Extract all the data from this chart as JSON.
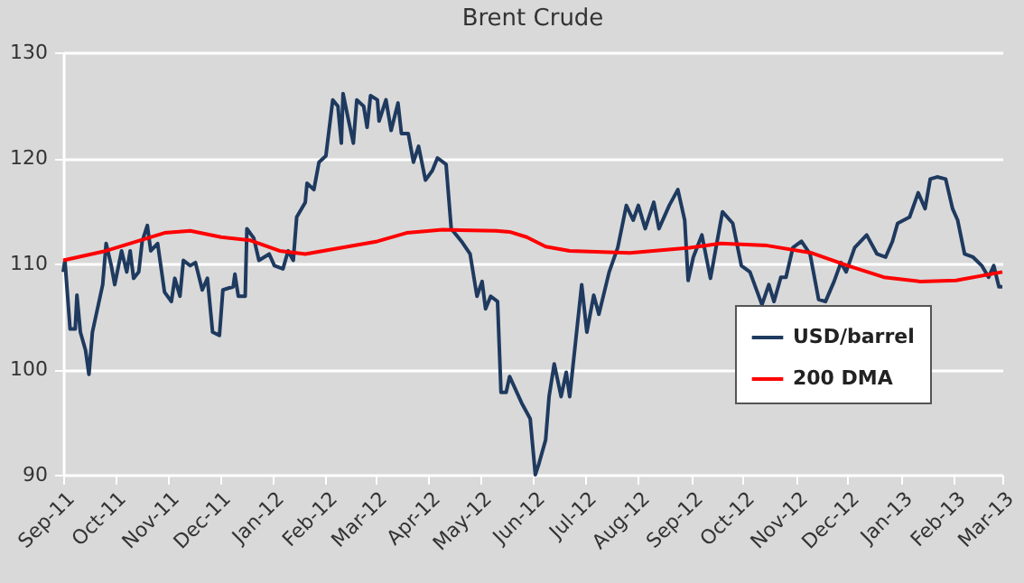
{
  "chart_data": {
    "type": "line",
    "title": "Brent Crude",
    "xlim": [
      "2011-09-01",
      "2013-03-01"
    ],
    "ylim": [
      90,
      130
    ],
    "yticks": [
      90,
      100,
      110,
      120,
      130
    ],
    "xticks": [
      {
        "value": "2011-09-01",
        "label": "Sep-11"
      },
      {
        "value": "2011-10-01",
        "label": "Oct-11"
      },
      {
        "value": "2011-11-01",
        "label": "Nov-11"
      },
      {
        "value": "2011-12-01",
        "label": "Dec-11"
      },
      {
        "value": "2012-01-01",
        "label": "Jan-12"
      },
      {
        "value": "2012-02-01",
        "label": "Feb-12"
      },
      {
        "value": "2012-03-01",
        "label": "Mar-12"
      },
      {
        "value": "2012-04-01",
        "label": "Apr-12"
      },
      {
        "value": "2012-05-01",
        "label": "May-12"
      },
      {
        "value": "2012-06-01",
        "label": "Jun-12"
      },
      {
        "value": "2012-07-01",
        "label": "Jul-12"
      },
      {
        "value": "2012-08-01",
        "label": "Aug-12"
      },
      {
        "value": "2012-09-01",
        "label": "Sep-12"
      },
      {
        "value": "2012-10-01",
        "label": "Oct-12"
      },
      {
        "value": "2012-11-01",
        "label": "Nov-12"
      },
      {
        "value": "2012-12-01",
        "label": "Dec-12"
      },
      {
        "value": "2013-01-01",
        "label": "Jan-13"
      },
      {
        "value": "2013-02-01",
        "label": "Feb-13"
      },
      {
        "value": "2013-03-01",
        "label": "Mar-13"
      }
    ],
    "grid": "y",
    "legend": "bottom right",
    "series": [
      {
        "name": "USD/barrel",
        "color": "#1f3a5f",
        "x": [
          "2011-09-01",
          "2011-09-02",
          "2011-09-05",
          "2011-09-08",
          "2011-09-09",
          "2011-09-11",
          "2011-09-14",
          "2011-09-16",
          "2011-09-18",
          "2011-09-24",
          "2011-09-26",
          "2011-09-29",
          "2011-10-01",
          "2011-10-05",
          "2011-10-08",
          "2011-10-10",
          "2011-10-12",
          "2011-10-15",
          "2011-10-17",
          "2011-10-20",
          "2011-10-22",
          "2011-10-26",
          "2011-10-30",
          "2011-11-03",
          "2011-11-05",
          "2011-11-08",
          "2011-11-10",
          "2011-11-14",
          "2011-11-17",
          "2011-11-21",
          "2011-11-24",
          "2011-11-27",
          "2011-12-01",
          "2011-12-03",
          "2011-12-09",
          "2011-12-10",
          "2011-12-12",
          "2011-12-16",
          "2011-12-17",
          "2011-12-21",
          "2011-12-24",
          "2011-12-30",
          "2012-01-02",
          "2012-01-07",
          "2012-01-10",
          "2012-01-13",
          "2012-01-15",
          "2012-01-20",
          "2012-01-21",
          "2012-01-25",
          "2012-01-28",
          "2012-02-01",
          "2012-02-05",
          "2012-02-08",
          "2012-02-10",
          "2012-02-11",
          "2012-02-14",
          "2012-02-17",
          "2012-02-19",
          "2012-02-23",
          "2012-02-25",
          "2012-02-27",
          "2012-03-02",
          "2012-03-03",
          "2012-03-07",
          "2012-03-10",
          "2012-03-14",
          "2012-03-16",
          "2012-03-20",
          "2012-03-23",
          "2012-03-26",
          "2012-03-30",
          "2012-04-03",
          "2012-04-06",
          "2012-04-11",
          "2012-04-14",
          "2012-04-20",
          "2012-04-25",
          "2012-04-29",
          "2012-05-02",
          "2012-05-04",
          "2012-05-07",
          "2012-05-11",
          "2012-05-13",
          "2012-05-16",
          "2012-05-18",
          "2012-05-25",
          "2012-05-30",
          "2012-06-02",
          "2012-06-04",
          "2012-06-08",
          "2012-06-10",
          "2012-06-13",
          "2012-06-17",
          "2012-06-20",
          "2012-06-22",
          "2012-06-29",
          "2012-07-02",
          "2012-07-06",
          "2012-07-09",
          "2012-07-15",
          "2012-07-20",
          "2012-07-25",
          "2012-07-29",
          "2012-08-01",
          "2012-08-05",
          "2012-08-10",
          "2012-08-13",
          "2012-08-19",
          "2012-08-24",
          "2012-08-28",
          "2012-08-30",
          "2012-09-02",
          "2012-09-07",
          "2012-09-12",
          "2012-09-19",
          "2012-09-25",
          "2012-09-30",
          "2012-10-05",
          "2012-10-12",
          "2012-10-16",
          "2012-10-19",
          "2012-10-23",
          "2012-10-26",
          "2012-10-30",
          "2012-11-04",
          "2012-11-09",
          "2012-11-14",
          "2012-11-18",
          "2012-11-23",
          "2012-11-27",
          "2012-11-30",
          "2012-12-05",
          "2012-12-12",
          "2012-12-18",
          "2012-12-23",
          "2012-12-27",
          "2012-12-30",
          "2013-01-06",
          "2013-01-11",
          "2013-01-15",
          "2013-01-18",
          "2013-01-22",
          "2013-01-27",
          "2013-01-31",
          "2013-02-03",
          "2013-02-07",
          "2013-02-12",
          "2013-02-17",
          "2013-02-21",
          "2013-02-24",
          "2013-02-27",
          "2013-03-01"
        ],
        "values": [
          109.2,
          110.3,
          103.8,
          103.8,
          107,
          103.5,
          101.8,
          99.5,
          103.5,
          108,
          111.9,
          109.8,
          108,
          111.2,
          109.2,
          111.2,
          108.6,
          109.2,
          112.1,
          113.6,
          111.2,
          111.9,
          107.3,
          106.4,
          108.6,
          106.9,
          110.3,
          109.8,
          110.1,
          107.5,
          108.6,
          103.5,
          103.2,
          107.5,
          107.8,
          109,
          106.9,
          106.9,
          113.3,
          112.4,
          110.3,
          110.9,
          109.8,
          109.5,
          111.2,
          110.3,
          114.4,
          115.8,
          117.6,
          117,
          119.6,
          120.2,
          125.5,
          124.9,
          121.4,
          126.1,
          123.7,
          121.4,
          125.5,
          124.9,
          122.9,
          125.9,
          125.5,
          123.5,
          125.5,
          122.6,
          125.2,
          122.3,
          122.3,
          119.6,
          121.1,
          117.9,
          118.8,
          120,
          119.4,
          113.3,
          112.1,
          110.9,
          106.9,
          108.3,
          105.7,
          106.9,
          106.4,
          97.8,
          97.8,
          99.3,
          96.8,
          95.3,
          90,
          91,
          93.3,
          97.4,
          100.5,
          97.4,
          99.7,
          97.4,
          108,
          103.5,
          107,
          105.2,
          109.2,
          111.5,
          115.5,
          114.1,
          115.5,
          113.3,
          115.8,
          113.3,
          115.5,
          117,
          114.1,
          108.4,
          110.6,
          112.7,
          108.6,
          114.9,
          113.8,
          109.8,
          109.2,
          106.1,
          108,
          106.4,
          108.7,
          108.7,
          111.5,
          112.1,
          110.9,
          106.6,
          106.4,
          108.3,
          110.1,
          109.2,
          111.5,
          112.7,
          110.9,
          110.6,
          112.1,
          113.8,
          114.4,
          116.7,
          115.2,
          118,
          118.2,
          118,
          115.2,
          114.1,
          110.9,
          110.6,
          109.8,
          108.7,
          109.8,
          107.8,
          107.8
        ]
      },
      {
        "name": "200 DMA",
        "color": "#ff0000",
        "x": [
          "2011-09-01",
          "2011-09-26",
          "2011-10-30",
          "2011-11-14",
          "2011-12-02",
          "2011-12-19",
          "2012-01-05",
          "2012-01-20",
          "2012-02-10",
          "2012-03-02",
          "2012-03-19",
          "2012-04-09",
          "2012-05-10",
          "2012-05-18",
          "2012-05-28",
          "2012-06-08",
          "2012-06-22",
          "2012-07-27",
          "2012-08-31",
          "2012-09-18",
          "2012-10-15",
          "2012-11-10",
          "2012-12-01",
          "2012-12-22",
          "2013-01-12",
          "2013-02-02",
          "2013-03-01"
        ],
        "values": [
          110.3,
          111.2,
          112.9,
          113.1,
          112.5,
          112.2,
          111.2,
          110.9,
          111.5,
          112.1,
          112.9,
          113.2,
          113.1,
          113,
          112.5,
          111.6,
          111.2,
          111,
          111.5,
          111.9,
          111.7,
          111,
          109.8,
          108.7,
          108.3,
          108.4,
          109.2
        ]
      }
    ]
  }
}
